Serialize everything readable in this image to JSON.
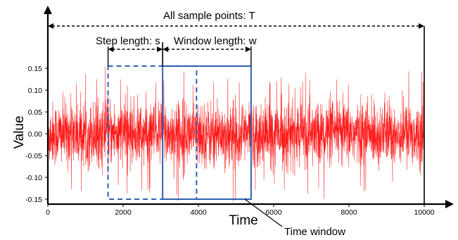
{
  "chart_data": {
    "type": "line",
    "x_range": [
      0,
      10000
    ],
    "y_range": [
      -0.16,
      0.16
    ],
    "x_ticks": [
      0,
      2000,
      4000,
      6000,
      8000,
      10000
    ],
    "y_ticks": [
      -0.15,
      -0.1,
      -0.05,
      0.0,
      0.05,
      0.1,
      0.15
    ],
    "x_tick_labels": [
      "0",
      "2000",
      "4000",
      "6000",
      "8000",
      "10000"
    ],
    "y_tick_labels": [
      "-0.15",
      "-0.10",
      "-0.05",
      "0.00",
      "0.05",
      "0.10",
      "0.15"
    ],
    "xlabel": "Time",
    "ylabel": "Value",
    "signal": {
      "color": "#ff1a1a",
      "points": 10000,
      "typical_amplitude": 0.05,
      "max_amplitude": 0.155
    },
    "windows": [
      {
        "style": "dashed",
        "x_start": 1600,
        "x_end": 3950,
        "y_min": -0.15,
        "y_max": 0.155,
        "color": "#2e5fb0"
      },
      {
        "style": "solid",
        "x_start": 3050,
        "x_end": 5400,
        "y_min": -0.15,
        "y_max": 0.155,
        "color": "#2e5fb0"
      }
    ],
    "annotations": {
      "all_points": {
        "label": "All sample points: T",
        "x_start": 0,
        "x_end": 10000
      },
      "step_length": {
        "label": "Step length: s",
        "x_start": 1600,
        "x_end": 3050
      },
      "window_length": {
        "label": "Window length: w",
        "x_start": 3050,
        "x_end": 5400
      },
      "time_window": {
        "label": "Time window"
      }
    }
  }
}
